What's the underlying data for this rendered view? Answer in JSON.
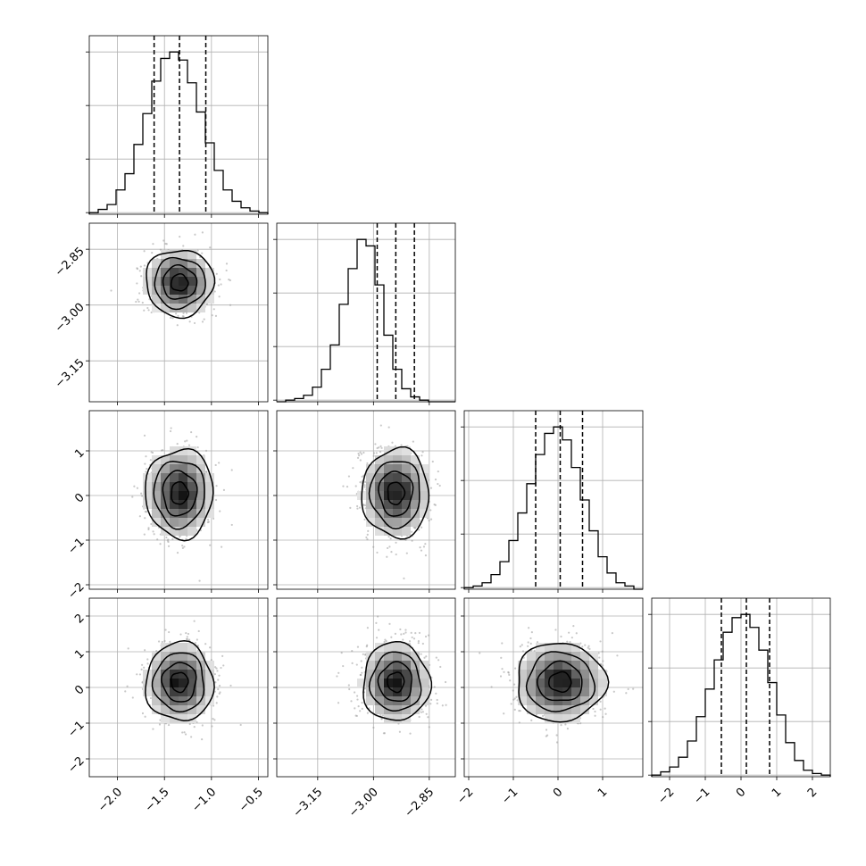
{
  "chart_data": {
    "type": "corner",
    "n_params": 4,
    "grid": true,
    "params": [
      {
        "range": [
          -2.3,
          -0.4
        ],
        "ticks": [
          -2.0,
          -1.5,
          -1.0,
          -0.5
        ],
        "tick_labels": [
          "−2.0",
          "−1.5",
          "−1.0",
          "−0.5"
        ],
        "quantiles": [
          -1.61,
          -1.34,
          -1.06
        ]
      },
      {
        "range": [
          -3.26,
          -2.78
        ],
        "ticks": [
          -3.15,
          -3.0,
          -2.85
        ],
        "tick_labels": [
          "−3.15",
          "−3.00",
          "−2.85"
        ],
        "quantiles": [
          -2.99,
          -2.94,
          -2.89
        ]
      },
      {
        "range": [
          -2.1,
          1.9
        ],
        "ticks": [
          -2,
          -1,
          0,
          1
        ],
        "tick_labels": [
          "−2",
          "−1",
          "0",
          "1"
        ],
        "quantiles": [
          -0.5,
          0.05,
          0.55
        ]
      },
      {
        "range": [
          -2.5,
          2.5
        ],
        "ticks": [
          -2,
          -1,
          0,
          1,
          2
        ],
        "tick_labels": [
          "−2",
          "−1",
          "0",
          "1",
          "2"
        ],
        "quantiles": [
          -0.55,
          0.15,
          0.8
        ]
      }
    ],
    "histograms": [
      {
        "edges_start": -2.3,
        "bin_width": 0.095,
        "counts": [
          0.01,
          0.03,
          0.06,
          0.15,
          0.25,
          0.43,
          0.62,
          0.82,
          0.96,
          1.0,
          0.95,
          0.81,
          0.63,
          0.44,
          0.27,
          0.15,
          0.08,
          0.04,
          0.02,
          0.01
        ]
      },
      {
        "edges_start": -3.26,
        "bin_width": 0.024,
        "counts": [
          0.0,
          0.01,
          0.02,
          0.04,
          0.09,
          0.2,
          0.35,
          0.6,
          0.82,
          1.0,
          0.96,
          0.72,
          0.41,
          0.2,
          0.08,
          0.03,
          0.01,
          0.0,
          0.0,
          0.0
        ]
      },
      {
        "edges_start": -2.1,
        "bin_width": 0.2,
        "counts": [
          0.01,
          0.02,
          0.04,
          0.09,
          0.17,
          0.3,
          0.47,
          0.65,
          0.83,
          0.96,
          1.0,
          0.92,
          0.75,
          0.55,
          0.36,
          0.2,
          0.1,
          0.04,
          0.02,
          0.0
        ]
      },
      {
        "edges_start": -2.5,
        "bin_width": 0.25,
        "counts": [
          0.01,
          0.03,
          0.06,
          0.12,
          0.22,
          0.37,
          0.54,
          0.72,
          0.89,
          0.98,
          1.0,
          0.92,
          0.78,
          0.58,
          0.38,
          0.21,
          0.1,
          0.04,
          0.02,
          0.01
        ]
      }
    ],
    "joint": [
      {
        "x": 0,
        "y": 1,
        "center": [
          -1.34,
          -2.94
        ],
        "sigma": [
          0.18,
          0.045
        ]
      },
      {
        "x": 0,
        "y": 2,
        "center": [
          -1.34,
          0.05
        ],
        "sigma": [
          0.18,
          0.5
        ]
      },
      {
        "x": 1,
        "y": 2,
        "center": [
          -2.94,
          0.05
        ],
        "sigma": [
          0.045,
          0.5
        ]
      },
      {
        "x": 0,
        "y": 3,
        "center": [
          -1.34,
          0.15
        ],
        "sigma": [
          0.18,
          0.55
        ]
      },
      {
        "x": 1,
        "y": 3,
        "center": [
          -2.94,
          0.15
        ],
        "sigma": [
          0.045,
          0.55
        ]
      },
      {
        "x": 2,
        "y": 3,
        "center": [
          0.05,
          0.15
        ],
        "sigma": [
          0.5,
          0.55
        ]
      }
    ],
    "contour_levels_sigma": [
      0.5,
      1.0,
      1.5,
      2.0
    ]
  }
}
